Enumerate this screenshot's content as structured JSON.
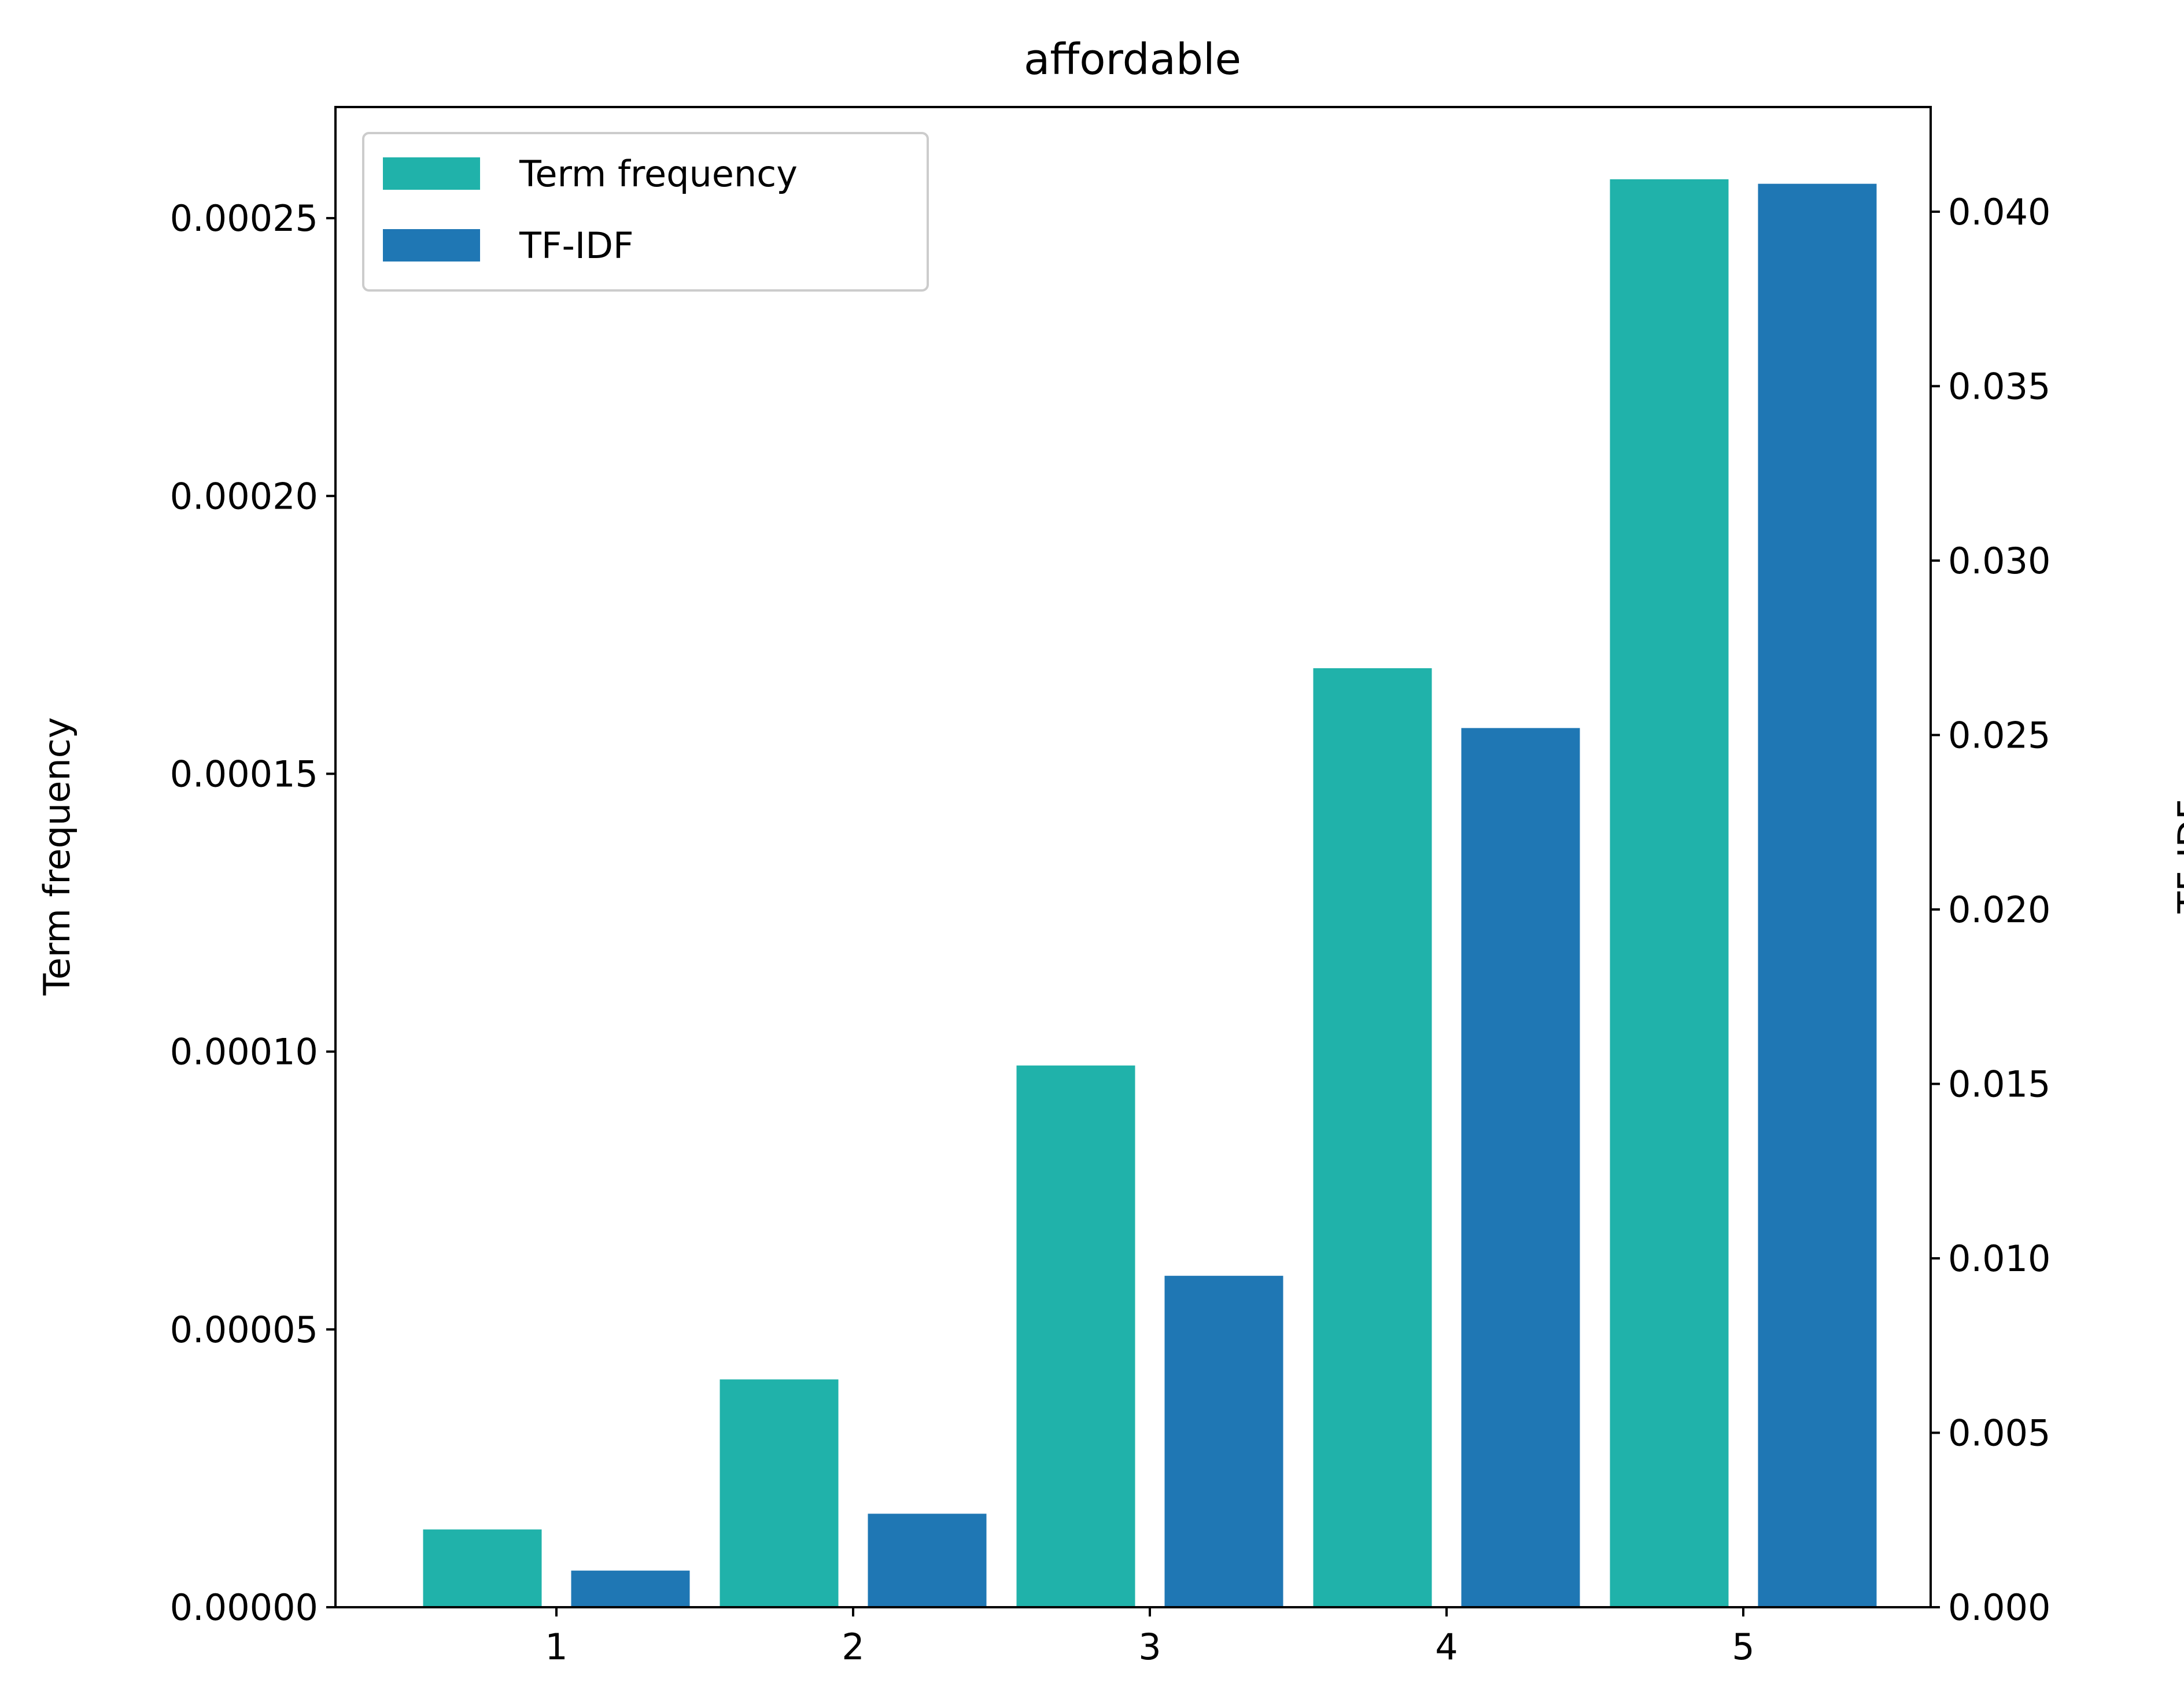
{
  "chart_data": {
    "type": "bar",
    "title": "affordable",
    "categories": [
      "1",
      "2",
      "3",
      "4",
      "5"
    ],
    "series": [
      {
        "name": "Term frequency",
        "axis": "left",
        "color": "#20b2aa",
        "values": [
          1.4e-05,
          4.1e-05,
          9.75e-05,
          0.000169,
          0.000257
        ]
      },
      {
        "name": "TF-IDF",
        "axis": "right",
        "color": "#1f77b4",
        "values": [
          0.00105,
          0.00268,
          0.0095,
          0.0252,
          0.0408
        ]
      }
    ],
    "ylabel_left": "Term frequency",
    "ylabel_right": "TF-IDF",
    "ylim_left": [
      0,
      0.00027
    ],
    "ylim_right": [
      0,
      0.043
    ],
    "yticks_left": [
      "0.00000",
      "0.00005",
      "0.00010",
      "0.00015",
      "0.00020",
      "0.00025"
    ],
    "yticks_right": [
      "0.000",
      "0.005",
      "0.010",
      "0.015",
      "0.020",
      "0.025",
      "0.030",
      "0.035",
      "0.040"
    ],
    "grid": false,
    "legend_position": "top-left"
  }
}
